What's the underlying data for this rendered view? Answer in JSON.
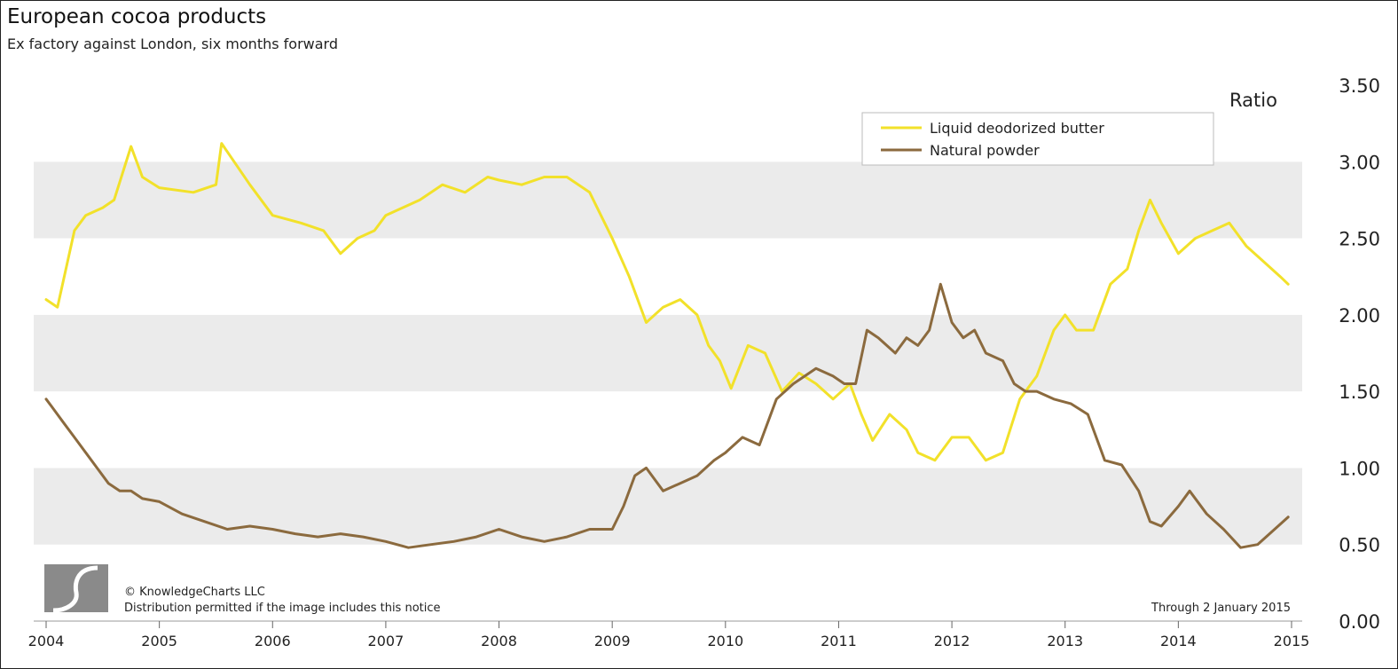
{
  "title": "European cocoa products",
  "subtitle": "Ex factory against London, six months forward",
  "copyright": "© KnowledgeCharts LLC",
  "distribution": "Distribution permitted if the image includes this notice",
  "through": "Through 2 January 2015",
  "chart_data": {
    "type": "line",
    "ylabel": "Ratio",
    "ylim": [
      0,
      3.5
    ],
    "xlim": [
      2004,
      2015
    ],
    "x_ticks": [
      "2004",
      "2005",
      "2006",
      "2007",
      "2008",
      "2009",
      "2010",
      "2011",
      "2012",
      "2013",
      "2014",
      "2015"
    ],
    "y_ticks": [
      "0.00",
      "0.50",
      "1.00",
      "1.50",
      "2.00",
      "2.50",
      "3.00",
      "3.50"
    ],
    "legend_position": "top-right",
    "grid": "alternating horizontal bands",
    "series": [
      {
        "name": "Liquid deodorized butter",
        "color": "#f2e12a",
        "x": [
          2004.0,
          2004.1,
          2004.25,
          2004.35,
          2004.5,
          2004.6,
          2004.75,
          2004.85,
          2005.0,
          2005.3,
          2005.5,
          2005.55,
          2005.8,
          2006.0,
          2006.25,
          2006.45,
          2006.6,
          2006.75,
          2006.9,
          2007.0,
          2007.3,
          2007.5,
          2007.7,
          2007.9,
          2008.0,
          2008.2,
          2008.4,
          2008.6,
          2008.8,
          2009.0,
          2009.15,
          2009.3,
          2009.45,
          2009.6,
          2009.75,
          2009.85,
          2009.95,
          2010.05,
          2010.2,
          2010.35,
          2010.5,
          2010.65,
          2010.8,
          2010.95,
          2011.1,
          2011.2,
          2011.3,
          2011.45,
          2011.6,
          2011.7,
          2011.85,
          2012.0,
          2012.15,
          2012.3,
          2012.45,
          2012.6,
          2012.75,
          2012.9,
          2013.0,
          2013.1,
          2013.25,
          2013.4,
          2013.55,
          2013.65,
          2013.75,
          2013.85,
          2014.0,
          2014.15,
          2014.3,
          2014.45,
          2014.6,
          2014.75,
          2014.9,
          2014.97
        ],
        "values": [
          2.1,
          2.05,
          2.55,
          2.65,
          2.7,
          2.75,
          3.1,
          2.9,
          2.83,
          2.8,
          2.85,
          3.12,
          2.85,
          2.65,
          2.6,
          2.55,
          2.4,
          2.5,
          2.55,
          2.65,
          2.75,
          2.85,
          2.8,
          2.9,
          2.88,
          2.85,
          2.9,
          2.9,
          2.8,
          2.5,
          2.25,
          1.95,
          2.05,
          2.1,
          2.0,
          1.8,
          1.7,
          1.52,
          1.8,
          1.75,
          1.5,
          1.62,
          1.55,
          1.45,
          1.55,
          1.35,
          1.18,
          1.35,
          1.25,
          1.1,
          1.05,
          1.2,
          1.2,
          1.05,
          1.1,
          1.45,
          1.6,
          1.9,
          2.0,
          1.9,
          1.9,
          2.2,
          2.3,
          2.55,
          2.75,
          2.6,
          2.4,
          2.5,
          2.55,
          2.6,
          2.45,
          2.35,
          2.25,
          2.2
        ]
      },
      {
        "name": "Natural powder",
        "color": "#8b6a3e",
        "x": [
          2004.0,
          2004.05,
          2004.15,
          2004.25,
          2004.35,
          2004.45,
          2004.55,
          2004.65,
          2004.75,
          2004.85,
          2005.0,
          2005.2,
          2005.4,
          2005.6,
          2005.8,
          2006.0,
          2006.2,
          2006.4,
          2006.6,
          2006.8,
          2007.0,
          2007.2,
          2007.4,
          2007.6,
          2007.8,
          2008.0,
          2008.2,
          2008.4,
          2008.6,
          2008.8,
          2009.0,
          2009.1,
          2009.2,
          2009.3,
          2009.45,
          2009.6,
          2009.75,
          2009.9,
          2010.0,
          2010.15,
          2010.3,
          2010.45,
          2010.6,
          2010.7,
          2010.8,
          2010.95,
          2011.05,
          2011.15,
          2011.25,
          2011.35,
          2011.5,
          2011.6,
          2011.7,
          2011.8,
          2011.9,
          2012.0,
          2012.1,
          2012.2,
          2012.3,
          2012.45,
          2012.55,
          2012.65,
          2012.75,
          2012.9,
          2013.05,
          2013.2,
          2013.35,
          2013.5,
          2013.65,
          2013.75,
          2013.85,
          2014.0,
          2014.1,
          2014.25,
          2014.4,
          2014.55,
          2014.7,
          2014.85,
          2014.97
        ],
        "values": [
          1.45,
          1.4,
          1.3,
          1.2,
          1.1,
          1.0,
          0.9,
          0.85,
          0.85,
          0.8,
          0.78,
          0.7,
          0.65,
          0.6,
          0.62,
          0.6,
          0.57,
          0.55,
          0.57,
          0.55,
          0.52,
          0.48,
          0.5,
          0.52,
          0.55,
          0.6,
          0.55,
          0.52,
          0.55,
          0.6,
          0.6,
          0.75,
          0.95,
          1.0,
          0.85,
          0.9,
          0.95,
          1.05,
          1.1,
          1.2,
          1.15,
          1.45,
          1.55,
          1.6,
          1.65,
          1.6,
          1.55,
          1.55,
          1.9,
          1.85,
          1.75,
          1.85,
          1.8,
          1.9,
          2.2,
          1.95,
          1.85,
          1.9,
          1.75,
          1.7,
          1.55,
          1.5,
          1.5,
          1.45,
          1.42,
          1.35,
          1.05,
          1.02,
          0.85,
          0.65,
          0.62,
          0.75,
          0.85,
          0.7,
          0.6,
          0.48,
          0.5,
          0.6,
          0.68
        ]
      }
    ]
  }
}
